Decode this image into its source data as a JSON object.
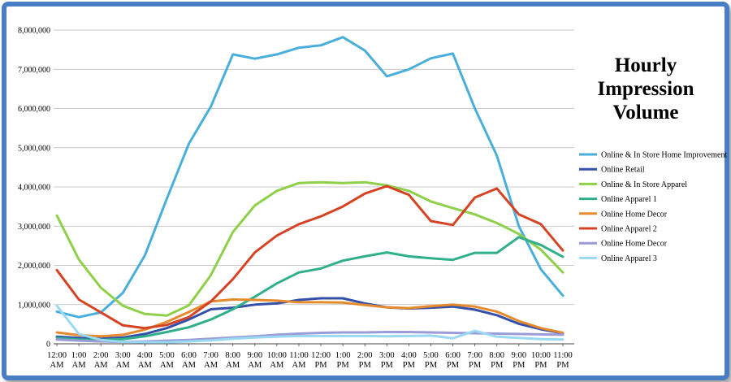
{
  "chart_data": {
    "type": "line",
    "title_lines": [
      "Hourly",
      "Impression",
      "Volume"
    ],
    "x": [
      [
        "12:00",
        "AM"
      ],
      [
        "1:00",
        "AM"
      ],
      [
        "2:00",
        "AM"
      ],
      [
        "3:00",
        "AM"
      ],
      [
        "4:00",
        "AM"
      ],
      [
        "5:00",
        "AM"
      ],
      [
        "6:00",
        "AM"
      ],
      [
        "7:00",
        "AM"
      ],
      [
        "8:00",
        "AM"
      ],
      [
        "9:00",
        "AM"
      ],
      [
        "10:00",
        "AM"
      ],
      [
        "11:00",
        "AM"
      ],
      [
        "12:00",
        "PM"
      ],
      [
        "1:00",
        "PM"
      ],
      [
        "2:00",
        "PM"
      ],
      [
        "3:00",
        "PM"
      ],
      [
        "4:00",
        "PM"
      ],
      [
        "5:00",
        "PM"
      ],
      [
        "6:00",
        "PM"
      ],
      [
        "7:00",
        "PM"
      ],
      [
        "8:00",
        "PM"
      ],
      [
        "9:00",
        "PM"
      ],
      [
        "10:00",
        "PM"
      ],
      [
        "11:00",
        "PM"
      ]
    ],
    "ylim": [
      0,
      8000000
    ],
    "yticks": [
      "0",
      "1,000,000",
      "2,000,000",
      "3,000,000",
      "4,000,000",
      "5,000,000",
      "6,000,000",
      "7,000,000",
      "8,000,000"
    ],
    "grid": true,
    "legend_position": "right",
    "series": [
      {
        "name": "Online & In Store Home Improvement",
        "color": "#4aaedb",
        "values": [
          820000,
          680000,
          800000,
          1300000,
          2250000,
          3700000,
          5100000,
          6050000,
          7380000,
          7270000,
          7380000,
          7550000,
          7610000,
          7820000,
          7480000,
          6820000,
          7000000,
          7280000,
          7400000,
          6000000,
          4800000,
          3000000,
          1900000,
          1230000
        ]
      },
      {
        "name": "Online Retail",
        "color": "#3550a8",
        "values": [
          180000,
          150000,
          130000,
          160000,
          250000,
          400000,
          620000,
          880000,
          920000,
          1000000,
          1030000,
          1120000,
          1160000,
          1160000,
          1030000,
          930000,
          900000,
          920000,
          950000,
          870000,
          730000,
          510000,
          370000,
          270000
        ]
      },
      {
        "name": "Online & In Store Apparel",
        "color": "#8ed04a",
        "values": [
          3270000,
          2150000,
          1430000,
          970000,
          760000,
          720000,
          980000,
          1750000,
          2850000,
          3530000,
          3900000,
          4100000,
          4120000,
          4100000,
          4120000,
          4040000,
          3900000,
          3630000,
          3460000,
          3300000,
          3080000,
          2800000,
          2400000,
          1820000
        ]
      },
      {
        "name": "Online Apparel 1",
        "color": "#2fb08a",
        "values": [
          150000,
          110000,
          100000,
          120000,
          190000,
          300000,
          420000,
          620000,
          880000,
          1200000,
          1540000,
          1820000,
          1920000,
          2120000,
          2230000,
          2330000,
          2230000,
          2180000,
          2140000,
          2320000,
          2320000,
          2720000,
          2520000,
          2220000
        ]
      },
      {
        "name": "Online Home Decor",
        "color": "#e68a2e",
        "values": [
          290000,
          220000,
          190000,
          230000,
          360000,
          560000,
          810000,
          1080000,
          1130000,
          1120000,
          1100000,
          1060000,
          1060000,
          1050000,
          990000,
          930000,
          910000,
          960000,
          1000000,
          950000,
          820000,
          580000,
          400000,
          280000
        ]
      },
      {
        "name": "Online Apparel 2",
        "color": "#d64324",
        "values": [
          1880000,
          1130000,
          800000,
          470000,
          400000,
          480000,
          680000,
          1080000,
          1650000,
          2330000,
          2760000,
          3050000,
          3250000,
          3500000,
          3830000,
          4020000,
          3800000,
          3130000,
          3030000,
          3730000,
          3960000,
          3300000,
          3050000,
          2380000
        ]
      },
      {
        "name": "Online Home Decor",
        "color": "#9b9bd8",
        "values": [
          110000,
          80000,
          60000,
          50000,
          60000,
          80000,
          100000,
          130000,
          160000,
          190000,
          230000,
          260000,
          280000,
          290000,
          290000,
          300000,
          300000,
          290000,
          280000,
          270000,
          260000,
          250000,
          240000,
          230000
        ]
      },
      {
        "name": "Online Apparel 3",
        "color": "#9ad9f2",
        "values": [
          970000,
          250000,
          100000,
          50000,
          40000,
          40000,
          60000,
          90000,
          130000,
          160000,
          180000,
          200000,
          200000,
          200000,
          200000,
          190000,
          200000,
          210000,
          140000,
          330000,
          180000,
          150000,
          120000,
          110000
        ]
      }
    ]
  }
}
